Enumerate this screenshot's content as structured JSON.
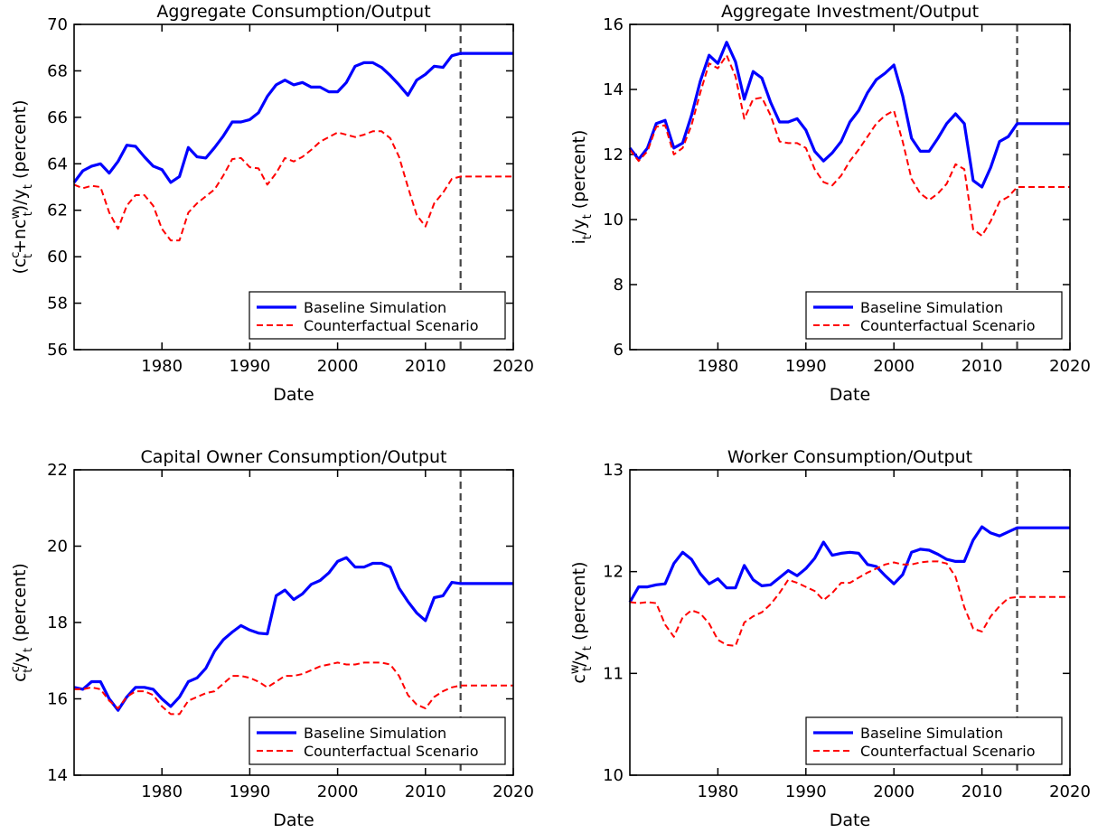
{
  "chart_data": [
    {
      "type": "line",
      "title": "Aggregate Consumption/Output",
      "xlabel": "Date",
      "ylabel": "(c^c_t+nc^w_t)/y_t (percent)",
      "xlim": [
        1970,
        2020
      ],
      "ylim": [
        56,
        70
      ],
      "xticks": [
        "1980",
        "1990",
        "2000",
        "2010",
        "2020"
      ],
      "yticks": [
        "56",
        "58",
        "60",
        "62",
        "64",
        "66",
        "68",
        "70"
      ],
      "vline": 2014,
      "legend": "bottom-right",
      "x": [
        1970,
        1971,
        1972,
        1973,
        1974,
        1975,
        1976,
        1977,
        1978,
        1979,
        1980,
        1981,
        1982,
        1983,
        1984,
        1985,
        1986,
        1987,
        1988,
        1989,
        1990,
        1991,
        1992,
        1993,
        1994,
        1995,
        1996,
        1997,
        1998,
        1999,
        2000,
        2001,
        2002,
        2003,
        2004,
        2005,
        2006,
        2007,
        2008,
        2009,
        2010,
        2011,
        2012,
        2013,
        2014,
        2020
      ],
      "series": [
        {
          "name": "Baseline Simulation",
          "color": "#0000ff",
          "dash": "solid",
          "values": [
            63.2,
            63.7,
            63.9,
            64.0,
            63.6,
            64.1,
            64.8,
            64.75,
            64.3,
            63.9,
            63.75,
            63.2,
            63.45,
            64.7,
            64.3,
            64.25,
            64.7,
            65.2,
            65.8,
            65.8,
            65.9,
            66.2,
            66.9,
            67.4,
            67.6,
            67.4,
            67.5,
            67.3,
            67.3,
            67.1,
            67.1,
            67.5,
            68.2,
            68.35,
            68.35,
            68.15,
            67.8,
            67.4,
            66.95,
            67.6,
            67.85,
            68.2,
            68.15,
            68.65,
            68.75,
            68.75
          ]
        },
        {
          "name": "Counterfactual Scenario",
          "color": "#ff0000",
          "dash": "dashed",
          "values": [
            63.1,
            62.95,
            63.05,
            63.0,
            61.9,
            61.2,
            62.2,
            62.65,
            62.65,
            62.2,
            61.2,
            60.7,
            60.7,
            61.9,
            62.3,
            62.6,
            62.9,
            63.5,
            64.2,
            64.25,
            63.85,
            63.8,
            63.1,
            63.6,
            64.25,
            64.1,
            64.3,
            64.6,
            64.95,
            65.15,
            65.35,
            65.25,
            65.15,
            65.25,
            65.4,
            65.4,
            65.1,
            64.3,
            63.0,
            61.8,
            61.3,
            62.3,
            62.75,
            63.35,
            63.45,
            63.45
          ]
        }
      ]
    },
    {
      "type": "line",
      "title": "Aggregate Investment/Output",
      "xlabel": "Date",
      "ylabel": "i_t/y_t (percent)",
      "xlim": [
        1970,
        2020
      ],
      "ylim": [
        6,
        16
      ],
      "xticks": [
        "1980",
        "1990",
        "2000",
        "2010",
        "2020"
      ],
      "yticks": [
        "6",
        "8",
        "10",
        "12",
        "14",
        "16"
      ],
      "vline": 2014,
      "legend": "bottom-right",
      "x": [
        1970,
        1971,
        1972,
        1973,
        1974,
        1975,
        1976,
        1977,
        1978,
        1979,
        1980,
        1981,
        1982,
        1983,
        1984,
        1985,
        1986,
        1987,
        1988,
        1989,
        1990,
        1991,
        1992,
        1993,
        1994,
        1995,
        1996,
        1997,
        1998,
        1999,
        2000,
        2001,
        2002,
        2003,
        2004,
        2005,
        2006,
        2007,
        2008,
        2009,
        2010,
        2011,
        2012,
        2013,
        2014,
        2020
      ],
      "series": [
        {
          "name": "Baseline Simulation",
          "color": "#0000ff",
          "dash": "solid",
          "values": [
            12.2,
            11.85,
            12.2,
            12.95,
            13.05,
            12.2,
            12.35,
            13.2,
            14.25,
            15.05,
            14.8,
            15.45,
            14.85,
            13.7,
            14.55,
            14.35,
            13.6,
            13.0,
            13.0,
            13.1,
            12.75,
            12.1,
            11.8,
            12.05,
            12.4,
            13.0,
            13.35,
            13.9,
            14.3,
            14.5,
            14.75,
            13.8,
            12.5,
            12.1,
            12.1,
            12.5,
            12.95,
            13.25,
            12.95,
            11.2,
            11.0,
            11.6,
            12.4,
            12.55,
            12.95,
            12.95
          ]
        },
        {
          "name": "Counterfactual Scenario",
          "color": "#ff0000",
          "dash": "dashed",
          "values": [
            12.15,
            11.8,
            12.1,
            12.85,
            12.9,
            12.0,
            12.2,
            12.9,
            13.9,
            14.8,
            14.65,
            15.05,
            14.4,
            13.1,
            13.7,
            13.75,
            13.2,
            12.4,
            12.35,
            12.35,
            12.2,
            11.55,
            11.15,
            11.05,
            11.35,
            11.8,
            12.15,
            12.55,
            12.95,
            13.2,
            13.35,
            12.4,
            11.25,
            10.8,
            10.6,
            10.8,
            11.1,
            11.7,
            11.55,
            9.7,
            9.5,
            9.95,
            10.55,
            10.7,
            11.0,
            11.0
          ]
        }
      ]
    },
    {
      "type": "line",
      "title": "Capital Owner Consumption/Output",
      "xlabel": "Date",
      "ylabel": "c^c_t/y_t (percent)",
      "xlim": [
        1970,
        2020
      ],
      "ylim": [
        14,
        22
      ],
      "xticks": [
        "1980",
        "1990",
        "2000",
        "2010",
        "2020"
      ],
      "yticks": [
        "14",
        "16",
        "18",
        "20",
        "22"
      ],
      "vline": 2014,
      "legend": "bottom-right",
      "x": [
        1970,
        1971,
        1972,
        1973,
        1974,
        1975,
        1976,
        1977,
        1978,
        1979,
        1980,
        1981,
        1982,
        1983,
        1984,
        1985,
        1986,
        1987,
        1988,
        1989,
        1990,
        1991,
        1992,
        1993,
        1994,
        1995,
        1996,
        1997,
        1998,
        1999,
        2000,
        2001,
        2002,
        2003,
        2004,
        2005,
        2006,
        2007,
        2008,
        2009,
        2010,
        2011,
        2012,
        2013,
        2014,
        2020
      ],
      "series": [
        {
          "name": "Baseline Simulation",
          "color": "#0000ff",
          "dash": "solid",
          "values": [
            16.3,
            16.25,
            16.45,
            16.45,
            16.0,
            15.7,
            16.05,
            16.3,
            16.3,
            16.25,
            16.0,
            15.8,
            16.05,
            16.45,
            16.55,
            16.8,
            17.25,
            17.55,
            17.75,
            17.92,
            17.8,
            17.72,
            17.7,
            18.7,
            18.85,
            18.6,
            18.75,
            19.0,
            19.1,
            19.3,
            19.6,
            19.7,
            19.45,
            19.45,
            19.55,
            19.55,
            19.45,
            18.9,
            18.55,
            18.25,
            18.05,
            18.65,
            18.7,
            19.05,
            19.02,
            19.02
          ]
        },
        {
          "name": "Counterfactual Scenario",
          "color": "#ff0000",
          "dash": "dashed",
          "values": [
            16.25,
            16.25,
            16.3,
            16.25,
            15.95,
            15.75,
            16.05,
            16.2,
            16.2,
            16.1,
            15.8,
            15.6,
            15.6,
            15.95,
            16.05,
            16.15,
            16.2,
            16.4,
            16.6,
            16.6,
            16.55,
            16.45,
            16.3,
            16.45,
            16.6,
            16.6,
            16.65,
            16.75,
            16.85,
            16.9,
            16.95,
            16.9,
            16.9,
            16.95,
            16.95,
            16.95,
            16.9,
            16.6,
            16.1,
            15.85,
            15.75,
            16.05,
            16.2,
            16.3,
            16.35,
            16.35
          ]
        }
      ]
    },
    {
      "type": "line",
      "title": "Worker Consumption/Output",
      "xlabel": "Date",
      "ylabel": "c^w_t/y_t (percent)",
      "xlim": [
        1970,
        2020
      ],
      "ylim": [
        10,
        13
      ],
      "xticks": [
        "1980",
        "1990",
        "2000",
        "2010",
        "2020"
      ],
      "yticks": [
        "10",
        "11",
        "12",
        "13"
      ],
      "vline": 2014,
      "legend": "bottom-right",
      "x": [
        1970,
        1971,
        1972,
        1973,
        1974,
        1975,
        1976,
        1977,
        1978,
        1979,
        1980,
        1981,
        1982,
        1983,
        1984,
        1985,
        1986,
        1987,
        1988,
        1989,
        1990,
        1991,
        1992,
        1993,
        1994,
        1995,
        1996,
        1997,
        1998,
        1999,
        2000,
        2001,
        2002,
        2003,
        2004,
        2005,
        2006,
        2007,
        2008,
        2009,
        2010,
        2011,
        2012,
        2013,
        2014,
        2020
      ],
      "series": [
        {
          "name": "Baseline Simulation",
          "color": "#0000ff",
          "dash": "solid",
          "values": [
            11.7,
            11.85,
            11.85,
            11.87,
            11.88,
            12.08,
            12.19,
            12.12,
            11.98,
            11.88,
            11.93,
            11.84,
            11.84,
            12.06,
            11.92,
            11.86,
            11.87,
            11.94,
            12.01,
            11.96,
            12.03,
            12.13,
            12.29,
            12.16,
            12.18,
            12.19,
            12.18,
            12.07,
            12.05,
            11.96,
            11.88,
            11.97,
            12.19,
            12.22,
            12.21,
            12.17,
            12.12,
            12.1,
            12.1,
            12.31,
            12.44,
            12.38,
            12.35,
            12.39,
            12.43,
            12.43
          ]
        },
        {
          "name": "Counterfactual Scenario",
          "color": "#ff0000",
          "dash": "dashed",
          "values": [
            11.7,
            11.69,
            11.7,
            11.69,
            11.48,
            11.36,
            11.55,
            11.62,
            11.59,
            11.49,
            11.33,
            11.28,
            11.27,
            11.5,
            11.56,
            11.6,
            11.68,
            11.79,
            11.92,
            11.89,
            11.85,
            11.81,
            11.72,
            11.79,
            11.89,
            11.89,
            11.94,
            11.99,
            12.03,
            12.07,
            12.09,
            12.07,
            12.07,
            12.09,
            12.1,
            12.1,
            12.08,
            11.95,
            11.65,
            11.44,
            11.41,
            11.56,
            11.66,
            11.74,
            11.75,
            11.75
          ]
        }
      ]
    }
  ]
}
